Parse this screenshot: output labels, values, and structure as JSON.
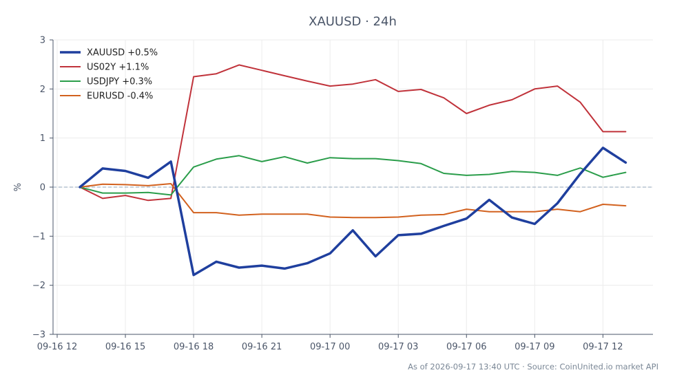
{
  "chart_data": {
    "type": "line",
    "title": "XAUUSD · 24h",
    "xlabel": "",
    "ylabel": "%",
    "ylim": [
      -3,
      3
    ],
    "yticks": [
      3,
      2,
      1,
      0,
      -1,
      -2,
      -3
    ],
    "ytick_labels": [
      "3",
      "2",
      "1",
      "0",
      "−1",
      "−2",
      "−3"
    ],
    "xlim": [
      0,
      26.2
    ],
    "xticks": [
      0,
      3,
      6,
      9,
      12,
      15,
      18,
      21,
      24
    ],
    "xtick_labels": [
      "09-16 12",
      "09-16 15",
      "09-16 18",
      "09-16 21",
      "09-17 00",
      "09-17 03",
      "09-17 06",
      "09-17 09",
      "09-17 12"
    ],
    "x": [
      1,
      2,
      3,
      4,
      5,
      6,
      7,
      8,
      9,
      10,
      11,
      12,
      13,
      14,
      15,
      16,
      17,
      18,
      19,
      20,
      21,
      22,
      23,
      24,
      25
    ],
    "zero_line": true,
    "grid": true,
    "legend_position": "top-left",
    "series": [
      {
        "name": "XAUUSD +0.5%",
        "color": "#1f3f9e",
        "width": 3.5,
        "values": [
          0,
          0.38,
          0.33,
          0.19,
          0.52,
          -1.79,
          -1.52,
          -1.64,
          -1.6,
          -1.66,
          -1.55,
          -1.35,
          -0.88,
          -1.41,
          -0.98,
          -0.95,
          -0.79,
          -0.64,
          -0.26,
          -0.62,
          -0.75,
          -0.33,
          0.27,
          0.8,
          0.5
        ]
      },
      {
        "name": "US02Y +1.1%",
        "color": "#c0323a",
        "width": 2,
        "values": [
          0,
          -0.23,
          -0.17,
          -0.27,
          -0.23,
          2.25,
          2.31,
          2.49,
          2.38,
          2.27,
          2.16,
          2.06,
          2.1,
          2.19,
          1.95,
          1.99,
          1.82,
          1.5,
          1.67,
          1.78,
          2.0,
          2.06,
          1.73,
          1.13,
          1.13
        ]
      },
      {
        "name": "USDJPY +0.3%",
        "color": "#2a9d4a",
        "width": 2,
        "values": [
          0,
          -0.12,
          -0.12,
          -0.11,
          -0.16,
          0.41,
          0.57,
          0.64,
          0.52,
          0.62,
          0.49,
          0.6,
          0.58,
          0.58,
          0.54,
          0.48,
          0.28,
          0.24,
          0.26,
          0.32,
          0.3,
          0.24,
          0.39,
          0.2,
          0.3
        ]
      },
      {
        "name": "EURUSD -0.4%",
        "color": "#d2611e",
        "width": 2,
        "values": [
          0,
          0.06,
          0.05,
          0.03,
          0.07,
          -0.52,
          -0.52,
          -0.57,
          -0.55,
          -0.55,
          -0.55,
          -0.61,
          -0.62,
          -0.62,
          -0.61,
          -0.57,
          -0.56,
          -0.45,
          -0.5,
          -0.5,
          -0.5,
          -0.45,
          -0.5,
          -0.35,
          -0.38
        ]
      }
    ]
  },
  "footer": {
    "text": "As of 2026-09-17 13:40 UTC · Source: CoinUnited.io market API"
  }
}
